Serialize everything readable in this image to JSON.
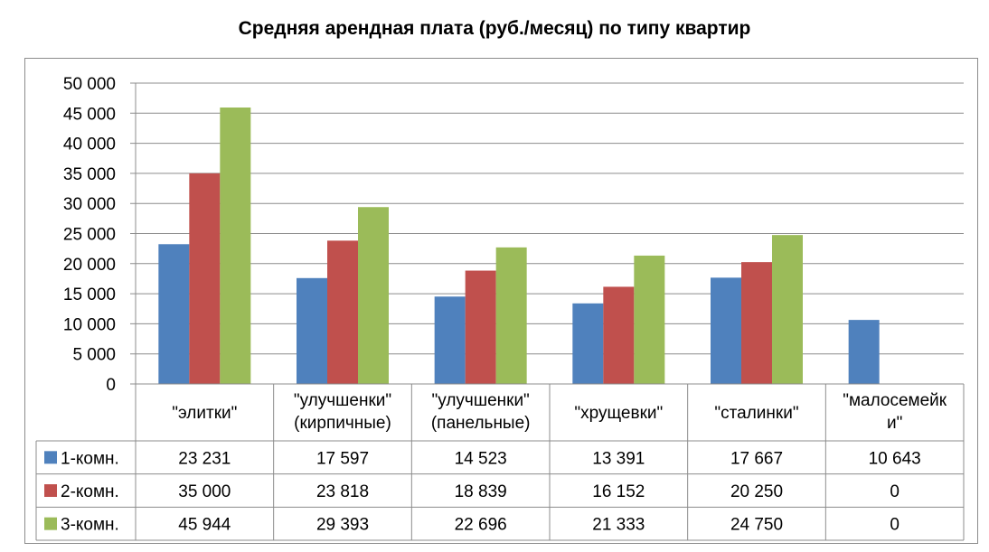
{
  "chart_data": {
    "type": "bar",
    "title": "Средняя арендная плата (руб./месяц) по типу квартир",
    "categories": [
      [
        "\"элитки\""
      ],
      [
        "\"улучшенки\"",
        "(кирпичные)"
      ],
      [
        "\"улучшенки\"",
        "(панельные)"
      ],
      [
        "\"хрущевки\""
      ],
      [
        "\"сталинки\""
      ],
      [
        "\"малосемейк",
        "и\""
      ]
    ],
    "series": [
      {
        "name": "1-комн.",
        "color": "#4f81bd",
        "values": [
          23231,
          17597,
          14523,
          13391,
          17667,
          10643
        ],
        "labels": [
          "23 231",
          "17 597",
          "14 523",
          "13 391",
          "17 667",
          "10 643"
        ]
      },
      {
        "name": "2-комн.",
        "color": "#c0504d",
        "values": [
          35000,
          23818,
          18839,
          16152,
          20250,
          0
        ],
        "labels": [
          "35 000",
          "23 818",
          "18 839",
          "16 152",
          "20 250",
          "0"
        ]
      },
      {
        "name": "3-комн.",
        "color": "#9bbb59",
        "values": [
          45944,
          29393,
          22696,
          21333,
          24750,
          0
        ],
        "labels": [
          "45 944",
          "29 393",
          "22 696",
          "21 333",
          "24 750",
          "0"
        ]
      }
    ],
    "ylim": [
      0,
      50000
    ],
    "yticks": [
      "0",
      "5 000",
      "10 000",
      "15 000",
      "20 000",
      "25 000",
      "30 000",
      "35 000",
      "40 000",
      "45 000",
      "50 000"
    ],
    "grid": true,
    "legend": "data-table"
  }
}
